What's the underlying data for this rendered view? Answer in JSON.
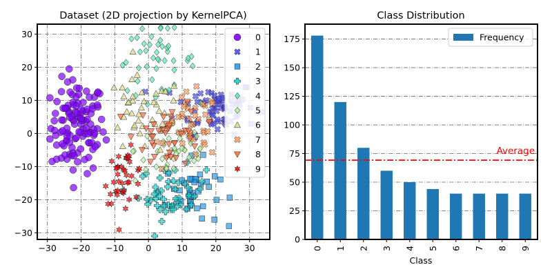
{
  "chart_data": [
    {
      "type": "scatter",
      "title": "Dataset (2D projection by KernelPCA)",
      "xlabel": "",
      "ylabel": "",
      "xlim": [
        -33,
        36
      ],
      "ylim": [
        -32,
        33
      ],
      "xticks": [
        -30,
        -20,
        -10,
        0,
        10,
        20,
        30
      ],
      "yticks": [
        -30,
        -20,
        -10,
        0,
        10,
        20,
        30
      ],
      "grid": true,
      "legend_position": "upper-right",
      "series": [
        {
          "name": "0",
          "marker": "circle",
          "color": "#8000ff",
          "n": 120,
          "center": [
            -21,
            2
          ],
          "spread": [
            4,
            7
          ]
        },
        {
          "name": "1",
          "marker": "x",
          "color": "#4b4bf5",
          "n": 70,
          "center": [
            20,
            8
          ],
          "spread": [
            6,
            4
          ]
        },
        {
          "name": "2",
          "marker": "square",
          "color": "#2c9be5",
          "n": 40,
          "center": [
            13,
            -18
          ],
          "spread": [
            4,
            5
          ]
        },
        {
          "name": "3",
          "marker": "plus",
          "color": "#19d0d0",
          "n": 50,
          "center": [
            7,
            -18
          ],
          "spread": [
            5,
            4
          ]
        },
        {
          "name": "4",
          "marker": "diamond",
          "color": "#5ee8b0",
          "n": 45,
          "center": [
            2,
            22
          ],
          "spread": [
            6,
            5
          ]
        },
        {
          "name": "5",
          "marker": "diamond",
          "color": "#b8f2a0",
          "n": 40,
          "center": [
            8,
            -5
          ],
          "spread": [
            6,
            5
          ]
        },
        {
          "name": "6",
          "marker": "triangle",
          "color": "#dcdc8c",
          "n": 40,
          "center": [
            -2,
            5
          ],
          "spread": [
            6,
            6
          ]
        },
        {
          "name": "7",
          "marker": "x",
          "color": "#ffa060",
          "n": 40,
          "center": [
            13,
            2
          ],
          "spread": [
            4,
            5
          ]
        },
        {
          "name": "8",
          "marker": "tri-down",
          "color": "#ff6a3c",
          "n": 40,
          "center": [
            6,
            0
          ],
          "spread": [
            5,
            5
          ]
        },
        {
          "name": "9",
          "marker": "star",
          "color": "#ff0000",
          "n": 40,
          "center": [
            -7,
            -13
          ],
          "spread": [
            3,
            4
          ]
        }
      ]
    },
    {
      "type": "bar",
      "title": "Class Distribution",
      "xlabel": "Class",
      "ylabel": "",
      "categories": [
        "0",
        "1",
        "2",
        "3",
        "4",
        "5",
        "6",
        "7",
        "8",
        "9"
      ],
      "series": [
        {
          "name": "Frequency",
          "values": [
            178,
            120,
            80,
            60,
            50,
            44,
            40,
            40,
            40,
            40
          ],
          "color": "#1f77b4"
        }
      ],
      "ylim": [
        0,
        188
      ],
      "yticks": [
        0,
        25,
        50,
        75,
        100,
        125,
        150,
        175
      ],
      "grid": true,
      "legend_position": "upper-right",
      "reference_line": {
        "label": "Average",
        "value": 69.2,
        "color": "#ff0000"
      }
    }
  ]
}
